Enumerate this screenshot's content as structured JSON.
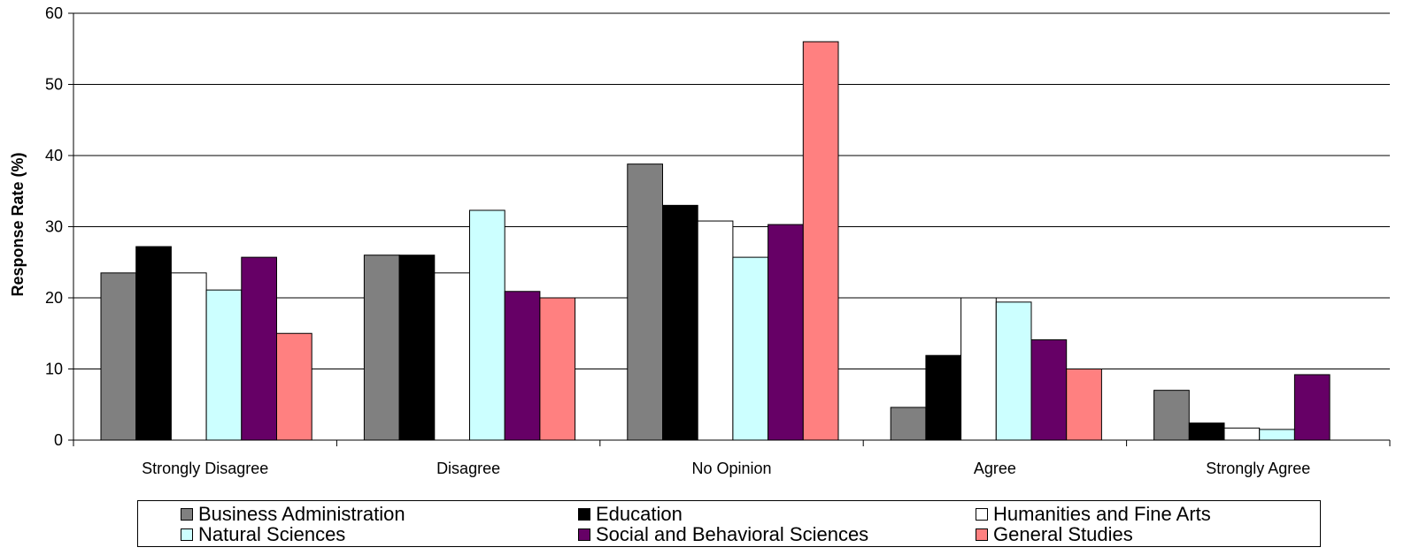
{
  "chart_data": {
    "type": "bar",
    "title": "",
    "xlabel": "",
    "ylabel": "Response Rate (%)",
    "ylim": [
      0,
      60
    ],
    "yticks": [
      "0",
      "10",
      "20",
      "30",
      "40",
      "50",
      "60"
    ],
    "grid": true,
    "legend_position": "bottom",
    "categories": [
      "Strongly Disagree",
      "Disagree",
      "No Opinion",
      "Agree",
      "Strongly Agree"
    ],
    "series": [
      {
        "name": "Business Administration",
        "color": "#808080",
        "values": [
          23.5,
          26,
          38.8,
          4.6,
          7
        ]
      },
      {
        "name": "Education",
        "color": "#000000",
        "values": [
          27.2,
          26,
          33,
          11.9,
          2.4
        ]
      },
      {
        "name": "Humanities and Fine Arts",
        "color": "#ffffff",
        "values": [
          23.5,
          23.5,
          30.8,
          20,
          1.7
        ]
      },
      {
        "name": "Natural Sciences",
        "color": "#ccffff",
        "values": [
          21.1,
          32.3,
          25.7,
          19.4,
          1.5
        ]
      },
      {
        "name": "Social and Behavioral Sciences",
        "color": "#660066",
        "values": [
          25.7,
          20.9,
          30.3,
          14.1,
          9.2
        ]
      },
      {
        "name": "General Studies",
        "color": "#ff8080",
        "values": [
          15,
          20,
          56,
          10,
          0
        ]
      }
    ]
  }
}
